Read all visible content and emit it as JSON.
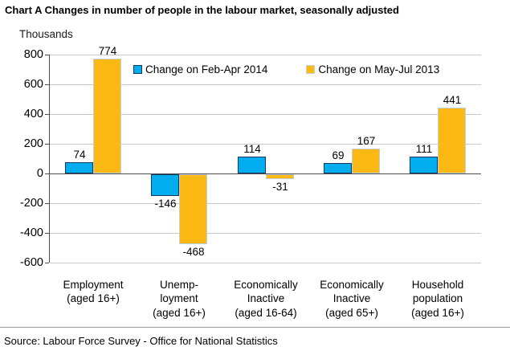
{
  "title": "Chart A Changes in number of people in the labour market, seasonally adjusted",
  "y_axis_unit_label": "Thousands",
  "source": "Source: Labour Force Survey - Office for National Statistics",
  "colors": {
    "series1_fill": "#00aeef",
    "series1_border": "#17375e",
    "series2_fill": "#fdb913",
    "series2_border": "#bccfe3",
    "gridline": "#c8c8c8",
    "axis": "#4d4d4d"
  },
  "chart_data": {
    "type": "bar",
    "title": "Chart A Changes in number of people in the labour market, seasonally adjusted",
    "ylabel": "Thousands",
    "ylim": [
      -600,
      800
    ],
    "ytick_interval": 200,
    "grid": true,
    "legend_position": "top-inside",
    "categories": [
      [
        "Employment",
        "(aged 16+)"
      ],
      [
        "Unemp-",
        "loyment",
        "(aged 16+)"
      ],
      [
        "Economically",
        "Inactive",
        "(aged 16-64)"
      ],
      [
        "Economically",
        "Inactive",
        "(aged 65+)"
      ],
      [
        "Household",
        "population",
        "(aged 16+)"
      ]
    ],
    "series": [
      {
        "name": "Change on Feb-Apr 2014",
        "values": [
          74,
          -146,
          114,
          69,
          111
        ]
      },
      {
        "name": "Change on May-Jul 2013",
        "values": [
          774,
          -468,
          -31,
          167,
          441
        ]
      }
    ]
  }
}
